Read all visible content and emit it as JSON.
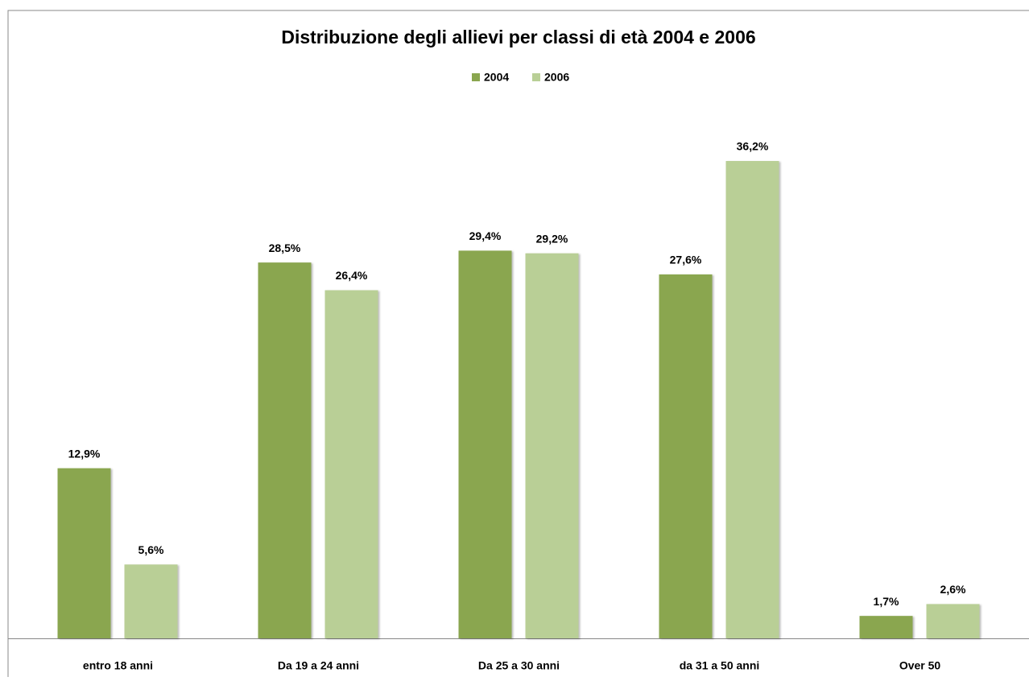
{
  "chart_data": {
    "type": "bar",
    "title": "Distribuzione degli allievi per classi di età 2004 e 2006",
    "categories": [
      "entro 18 anni",
      "Da 19 a 24 anni",
      "Da 25 a 30 anni",
      "da 31 a 50 anni",
      "Over 50"
    ],
    "series": [
      {
        "name": "2004",
        "color": "#8aa64f",
        "values": [
          12.9,
          28.5,
          29.4,
          27.6,
          1.7
        ],
        "value_labels": [
          "12,9%",
          "28,5%",
          "29,4%",
          "27,6%",
          "1,7%"
        ]
      },
      {
        "name": "2006",
        "color": "#b9cf96",
        "values": [
          5.6,
          26.4,
          29.2,
          36.2,
          2.6
        ],
        "value_labels": [
          "5,6%",
          "26,4%",
          "29,2%",
          "36,2%",
          "2,6%"
        ]
      }
    ],
    "legend": "top"
  }
}
